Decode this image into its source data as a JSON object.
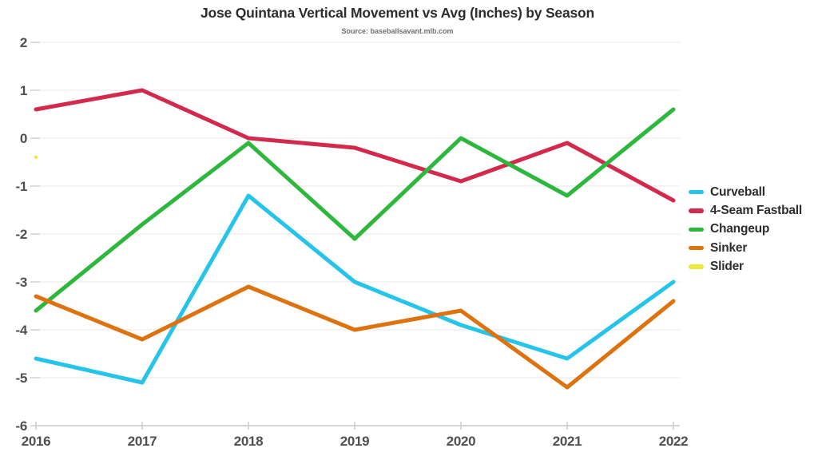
{
  "title": "Jose Quintana Vertical Movement vs Avg (Inches) by Season",
  "subtitle": "Source: baseballsavant.mlb.com",
  "colors": {
    "background": "#ffffff",
    "gridline": "#ececec",
    "axis_line": "#c9c9c9",
    "tick": "#dcdcdc",
    "axis_text": "#4f4f4f",
    "title_text": "#2d2d2d",
    "subtitle_text": "#6e6e6e"
  },
  "chart_data": {
    "type": "line",
    "title": "Jose Quintana Vertical Movement vs Avg (Inches) by Season",
    "subtitle": "Source: baseballsavant.mlb.com",
    "xlabel": "",
    "ylabel": "",
    "x": [
      "2016",
      "2017",
      "2018",
      "2019",
      "2020",
      "2021",
      "2022"
    ],
    "series": [
      {
        "name": "Curveball",
        "color": "#25c4e8",
        "values": [
          -4.6,
          -5.1,
          -1.2,
          -3.0,
          -3.9,
          -4.6,
          -3.0
        ]
      },
      {
        "name": "4-Seam Fastball",
        "color": "#d2294d",
        "values": [
          0.6,
          1.0,
          0.0,
          -0.2,
          -0.9,
          -0.1,
          -1.3
        ]
      },
      {
        "name": "Changeup",
        "color": "#2db83d",
        "values": [
          -3.6,
          -1.8,
          -0.1,
          -2.1,
          0.0,
          -1.2,
          0.6
        ]
      },
      {
        "name": "Sinker",
        "color": "#dd720f",
        "values": [
          -3.3,
          -4.2,
          -3.1,
          -4.0,
          -3.6,
          -5.2,
          -3.4
        ]
      },
      {
        "name": "Slider",
        "color": "#ece93a",
        "values": [
          -0.4,
          null,
          null,
          null,
          null,
          null,
          null
        ]
      }
    ],
    "ylim": [
      -6,
      2
    ],
    "yticks": [
      2,
      1,
      0,
      -1,
      -2,
      -3,
      -4,
      -5,
      -6
    ],
    "grid": true,
    "legend_position": "right",
    "line_width": 5
  }
}
